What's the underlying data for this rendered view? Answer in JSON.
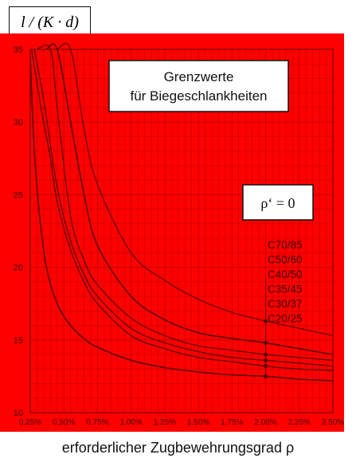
{
  "chart_data": {
    "type": "line",
    "ylabel": "l / (K · d)",
    "xlabel": "erforderlicher Zugbewehrungsgrad ρ",
    "ylim": [
      10,
      35
    ],
    "xlim": [
      0.25,
      2.5
    ],
    "yticks": [
      10,
      15,
      20,
      25,
      30,
      35
    ],
    "xticks": [
      "0.25%",
      "0.50%",
      "0.75%",
      "1.00%",
      "1.25%",
      "1.50%",
      "1.75%",
      "2.00%",
      "2.25%",
      "2.50%"
    ],
    "grid": true,
    "title_line1": "Grenzwerte",
    "title_line2": "für Biegeschlankheiten",
    "annotation": "ρ‘ = 0",
    "colors": {
      "background": "#ff0000",
      "grid": "#c00000",
      "curve": "#5a0000"
    },
    "series": [
      {
        "name": "C70/85",
        "x": [
          0.45,
          0.55,
          0.65,
          0.75,
          1.0,
          1.25,
          1.5,
          1.75,
          2.0,
          2.25,
          2.5
        ],
        "y": [
          35,
          35,
          29.5,
          25.7,
          21.0,
          19.1,
          17.8,
          16.9,
          16.3,
          15.8,
          15.3
        ]
      },
      {
        "name": "C50/60",
        "x": [
          0.37,
          0.45,
          0.55,
          0.65,
          0.75,
          1.0,
          1.25,
          1.5,
          1.75,
          2.0,
          2.25,
          2.5
        ],
        "y": [
          35,
          35,
          30.0,
          25.0,
          21.5,
          18.0,
          16.4,
          15.5,
          15.1,
          14.8,
          14.4,
          14.0
        ]
      },
      {
        "name": "C40/50",
        "x": [
          0.3,
          0.4,
          0.45,
          0.55,
          0.65,
          0.75,
          1.0,
          1.25,
          1.5,
          1.75,
          2.0,
          2.25,
          2.5
        ],
        "y": [
          35,
          35,
          31.0,
          23.5,
          20.5,
          18.8,
          16.5,
          15.3,
          14.6,
          14.3,
          14.0,
          13.8,
          13.6
        ]
      },
      {
        "name": "C35/45",
        "x": [
          0.28,
          0.35,
          0.45,
          0.55,
          0.65,
          0.75,
          1.0,
          1.25,
          1.5,
          1.75,
          2.0,
          2.25,
          2.5
        ],
        "y": [
          35,
          31.5,
          25.5,
          21.8,
          19.5,
          18.0,
          15.8,
          14.8,
          14.2,
          13.8,
          13.6,
          13.4,
          13.2
        ]
      },
      {
        "name": "C30/37",
        "x": [
          0.26,
          0.33,
          0.4,
          0.45,
          0.55,
          0.65,
          0.75,
          1.0,
          1.25,
          1.5,
          1.75,
          2.0,
          2.25,
          2.5
        ],
        "y": [
          35,
          31.0,
          27.5,
          24.5,
          21.2,
          19.0,
          17.5,
          15.3,
          14.4,
          13.8,
          13.5,
          13.2,
          13.0,
          12.9
        ]
      },
      {
        "name": "C20/25",
        "x": [
          0.25,
          0.28,
          0.32,
          0.37,
          0.45,
          0.55,
          0.65,
          0.75,
          1.0,
          1.25,
          1.5,
          1.75,
          2.0,
          2.25,
          2.5
        ],
        "y": [
          34.5,
          28.0,
          23.5,
          20.0,
          17.5,
          16.0,
          15.1,
          14.5,
          13.6,
          13.1,
          12.8,
          12.6,
          12.5,
          12.3,
          12.2
        ]
      }
    ]
  }
}
